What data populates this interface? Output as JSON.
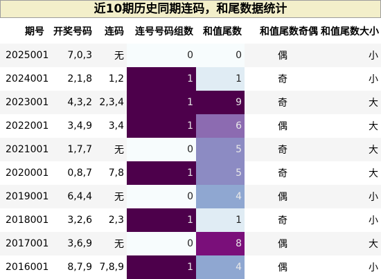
{
  "title": "近10期历史同期连码，和尾数据统计",
  "columns": [
    "期号",
    "开奖号码",
    "连码",
    "连号号码组数",
    "和值尾数",
    "和值尾数奇偶",
    "和值尾数大小"
  ],
  "rows": [
    {
      "issue": "2025001",
      "numbers": "7,0,3",
      "consecutive": "无",
      "group_count": "0",
      "tail": "0",
      "parity": "偶",
      "size": "小",
      "group_color": "#f7fcfd",
      "tail_color": "#f7fcfd"
    },
    {
      "issue": "2024001",
      "numbers": "2,1,8",
      "consecutive": "1,2",
      "group_count": "1",
      "tail": "1",
      "parity": "奇",
      "size": "小",
      "group_color": "#4d004b",
      "tail_color": "#e0ecf4"
    },
    {
      "issue": "2023001",
      "numbers": "4,3,2",
      "consecutive": "2,3,4",
      "group_count": "1",
      "tail": "9",
      "parity": "奇",
      "size": "大",
      "group_color": "#4d004b",
      "tail_color": "#4d004b"
    },
    {
      "issue": "2022001",
      "numbers": "3,4,9",
      "consecutive": "3,4",
      "group_count": "1",
      "tail": "6",
      "parity": "偶",
      "size": "大",
      "group_color": "#4d004b",
      "tail_color": "#8c6bb1"
    },
    {
      "issue": "2021001",
      "numbers": "1,7,7",
      "consecutive": "无",
      "group_count": "0",
      "tail": "5",
      "parity": "奇",
      "size": "大",
      "group_color": "#f7fcfd",
      "tail_color": "#8c8bc3"
    },
    {
      "issue": "2020001",
      "numbers": "0,8,7",
      "consecutive": "7,8",
      "group_count": "1",
      "tail": "5",
      "parity": "奇",
      "size": "大",
      "group_color": "#4d004b",
      "tail_color": "#8c8bc3"
    },
    {
      "issue": "2019001",
      "numbers": "6,4,4",
      "consecutive": "无",
      "group_count": "0",
      "tail": "4",
      "parity": "偶",
      "size": "小",
      "group_color": "#f7fcfd",
      "tail_color": "#8fa7d1"
    },
    {
      "issue": "2018001",
      "numbers": "3,2,6",
      "consecutive": "2,3",
      "group_count": "1",
      "tail": "1",
      "parity": "奇",
      "size": "小",
      "group_color": "#4d004b",
      "tail_color": "#e0ecf4"
    },
    {
      "issue": "2017001",
      "numbers": "3,6,9",
      "consecutive": "无",
      "group_count": "0",
      "tail": "8",
      "parity": "偶",
      "size": "大",
      "group_color": "#f7fcfd",
      "tail_color": "#7a0f7a"
    },
    {
      "issue": "2016001",
      "numbers": "8,7,9",
      "consecutive": "7,8,9",
      "group_count": "1",
      "tail": "4",
      "parity": "偶",
      "size": "小",
      "group_color": "#4d004b",
      "tail_color": "#8fa7d1"
    }
  ]
}
